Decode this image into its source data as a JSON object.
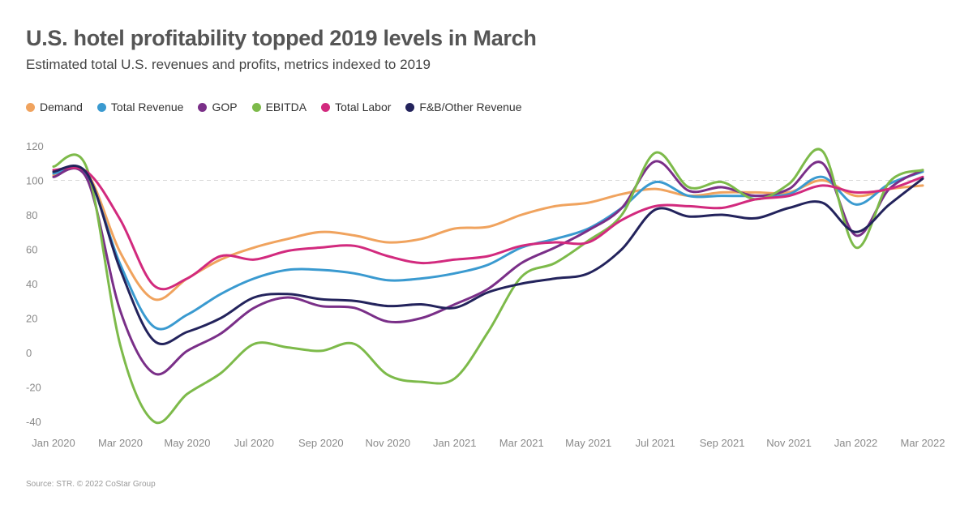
{
  "chart_data": {
    "type": "line",
    "title": "U.S. hotel profitability topped 2019 levels in March",
    "subtitle": "Estimated total U.S. revenues and profits, metrics indexed to 2019",
    "source": "Source: STR. © 2022 CoStar Group",
    "xlabel": "",
    "ylabel": "",
    "ylim": [
      -40,
      120
    ],
    "yticks": [
      120,
      100,
      80,
      60,
      40,
      20,
      0,
      -20,
      -40
    ],
    "reference_line": 100,
    "legend_position": "top-left",
    "x": [
      "Jan 2020",
      "Feb 2020",
      "Mar 2020",
      "Apr 2020",
      "May 2020",
      "Jun 2020",
      "Jul 2020",
      "Aug 2020",
      "Sep 2020",
      "Oct 2020",
      "Nov 2020",
      "Dec 2020",
      "Jan 2021",
      "Feb 2021",
      "Mar 2021",
      "Apr 2021",
      "May 2021",
      "Jun 2021",
      "Jul 2021",
      "Aug 2021",
      "Sep 2021",
      "Oct 2021",
      "Nov 2021",
      "Dec 2021",
      "Jan 2022",
      "Feb 2022",
      "Mar 2022"
    ],
    "xtick_labels": [
      "Jan 2020",
      "Mar 2020",
      "May 2020",
      "Jul 2020",
      "Sep 2020",
      "Nov 2020",
      "Jan 2021",
      "Mar 2021",
      "May 2021",
      "Jul 2021",
      "Sep 2021",
      "Nov 2021",
      "Jan 2022",
      "Mar 2022"
    ],
    "series": [
      {
        "name": "Demand",
        "color": "#F0A35E",
        "values": [
          103,
          104,
          58,
          31,
          43,
          54,
          61,
          66,
          70,
          68,
          64,
          66,
          72,
          73,
          80,
          85,
          87,
          92,
          95,
          91,
          93,
          93,
          93,
          100,
          91,
          95,
          97
        ]
      },
      {
        "name": "Total Revenue",
        "color": "#3A9AD0",
        "values": [
          104,
          103,
          51,
          15,
          22,
          34,
          43,
          48,
          48,
          46,
          42,
          43,
          46,
          51,
          61,
          66,
          72,
          84,
          99,
          91,
          91,
          91,
          92,
          102,
          86,
          98,
          105
        ]
      },
      {
        "name": "GOP",
        "color": "#7A2F88",
        "values": [
          102,
          101,
          24,
          -12,
          1,
          11,
          26,
          32,
          27,
          26,
          18,
          20,
          28,
          37,
          52,
          61,
          71,
          84,
          111,
          94,
          96,
          91,
          95,
          110,
          68,
          95,
          106
        ]
      },
      {
        "name": "EBITDA",
        "color": "#7DBA4A",
        "values": [
          108,
          107,
          4,
          -40,
          -24,
          -12,
          5,
          3,
          1,
          5,
          -13,
          -17,
          -15,
          12,
          44,
          52,
          65,
          80,
          116,
          96,
          99,
          89,
          98,
          117,
          61,
          99,
          106
        ]
      },
      {
        "name": "Total Labor",
        "color": "#D22A7E",
        "values": [
          106,
          105,
          77,
          39,
          43,
          56,
          54,
          59,
          61,
          62,
          56,
          52,
          54,
          56,
          62,
          64,
          64,
          77,
          85,
          85,
          84,
          89,
          91,
          97,
          93,
          95,
          102
        ]
      },
      {
        "name": "F&B/Other Revenue",
        "color": "#23235C",
        "values": [
          105,
          104,
          48,
          7,
          12,
          20,
          32,
          34,
          31,
          30,
          27,
          28,
          26,
          35,
          40,
          43,
          46,
          60,
          83,
          79,
          80,
          78,
          84,
          87,
          70,
          86,
          101
        ]
      }
    ]
  }
}
